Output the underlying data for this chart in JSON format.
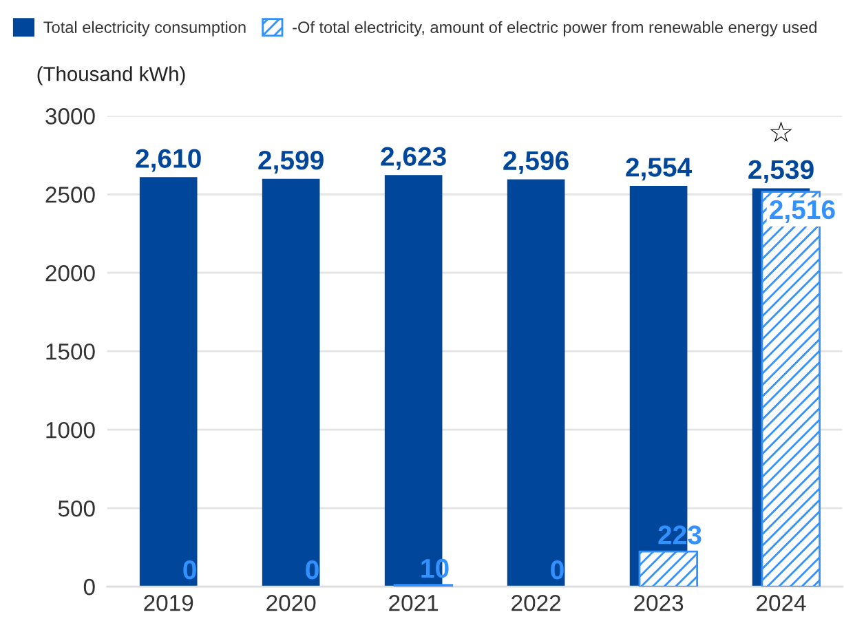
{
  "chart_data": {
    "type": "bar",
    "categories": [
      "2019",
      "2020",
      "2021",
      "2022",
      "2023",
      "2024"
    ],
    "ylabel": "(Thousand kWh)",
    "series": [
      {
        "name": "Total electricity consumption",
        "color": "#00479b",
        "values": [
          2610,
          2599,
          2623,
          2596,
          2554,
          2539
        ],
        "value_labels": [
          "2,610",
          "2,599",
          "2,623",
          "2,596",
          "2,554",
          "2,539"
        ]
      },
      {
        "name": "-Of total electricity, amount of electric power from renewable energy used",
        "color": "#3391ff",
        "values": [
          0,
          0,
          10,
          0,
          223,
          2516
        ],
        "value_labels": [
          "0",
          "0",
          "10",
          "0",
          "223",
          "2,516"
        ]
      }
    ],
    "ylim": [
      0,
      3000
    ],
    "yticks": [
      0,
      500,
      1000,
      1500,
      2000,
      2500,
      3000
    ],
    "grid": "y",
    "legend": "top left",
    "annotations": [
      {
        "text": "☆",
        "x": "2024",
        "y": 2539
      }
    ]
  }
}
